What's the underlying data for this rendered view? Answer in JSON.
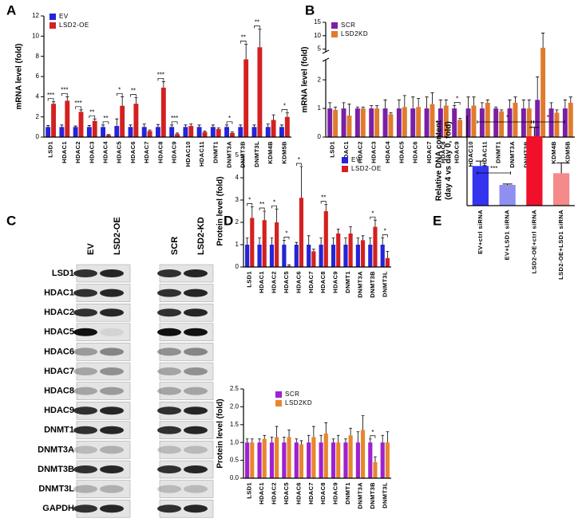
{
  "panel_labels": [
    "A",
    "B",
    "C",
    "D",
    "E"
  ],
  "blot": {
    "lanes": [
      "EV",
      "LSD2-OE",
      "SCR",
      "LSD2-KD"
    ],
    "proteins": [
      "LSD1",
      "HDAC1",
      "HDAC2",
      "HDAC5",
      "HDAC6",
      "HDAC7",
      "HDAC8",
      "HDAC9",
      "DNMT1",
      "DNMT3A",
      "DNMT3B",
      "DNMT3L",
      "GAPDH"
    ]
  },
  "chart_data": [
    {
      "type": "bar",
      "ylabel": [
        "mRNA level (fold)"
      ],
      "categories": [
        "LSD1",
        "HDAC1",
        "HDAC2",
        "HDAC3",
        "HDAC4",
        "HDAC5",
        "HDAC6",
        "HDAC7",
        "HDAC8",
        "HDAC9",
        "HDAC10",
        "HDAC11",
        "DNMT1",
        "DNMT3A",
        "DNMT3B",
        "DNMT3L",
        "KDM4B",
        "KDM5B"
      ],
      "series": [
        {
          "name": "EV",
          "color": "#2424d8",
          "values": [
            1,
            1,
            1,
            1,
            1,
            1.1,
            1,
            1,
            1,
            1,
            1,
            1,
            1,
            1,
            1,
            1,
            1,
            1
          ],
          "errors": [
            0.15,
            0.2,
            0.1,
            0.15,
            0.2,
            0.7,
            0.2,
            0.3,
            0.25,
            0.2,
            0.2,
            0.2,
            0.2,
            0.2,
            0.2,
            0.2,
            0.3,
            0.2
          ]
        },
        {
          "name": "LSD2-OE",
          "color": "#d42020",
          "values": [
            3.3,
            3.6,
            2.5,
            1.6,
            0.2,
            3.1,
            3.3,
            0.6,
            4.9,
            0.3,
            1.1,
            0.5,
            0.8,
            0.4,
            7.7,
            8.9,
            1.7,
            2.0
          ],
          "errors": [
            0.2,
            0.4,
            0.2,
            0.2,
            0.05,
            0.9,
            0.6,
            0.1,
            0.6,
            0.1,
            0.2,
            0.1,
            0.1,
            0.1,
            1.5,
            1.8,
            0.5,
            0.4
          ]
        }
      ],
      "significance": [
        "***",
        "***",
        "***",
        "**",
        "**",
        "*",
        "**",
        null,
        "***",
        "***",
        null,
        null,
        null,
        "*",
        "**",
        "**",
        null,
        "*"
      ],
      "ylim": [
        0,
        12
      ],
      "yticks": [
        0,
        2,
        4,
        6,
        8,
        10,
        12
      ]
    },
    {
      "type": "bar",
      "ylabel": [
        "mRNA level (fold)"
      ],
      "categories": [
        "LSD1",
        "HDAC1",
        "HDAC2",
        "HDAC3",
        "HDAC4",
        "HDAC5",
        "HDAC6",
        "HDAC7",
        "HDAC8",
        "HDAC9",
        "HDAC10",
        "HDAC11",
        "DNMT1",
        "DNMT3A",
        "DNMT3B",
        "DNMT3L",
        "KDM4B",
        "KDM5B"
      ],
      "series": [
        {
          "name": "SCR",
          "color": "#7a1fa6",
          "values": [
            1,
            1,
            1,
            1,
            1,
            1,
            1,
            1,
            1,
            1,
            1,
            1,
            1,
            1,
            1,
            1.3,
            1,
            1
          ],
          "errors": [
            0.2,
            0.2,
            0.05,
            0.1,
            0.3,
            0.3,
            0.4,
            0.4,
            0.3,
            0.1,
            0.4,
            0.2,
            0.05,
            0.3,
            0.3,
            0.8,
            0.2,
            0.3
          ]
        },
        {
          "name": "LSD2KD",
          "color": "#e07b2e",
          "values": [
            0.95,
            0.75,
            1,
            1,
            0.8,
            1.05,
            1.05,
            1.15,
            1.1,
            0.6,
            1.1,
            1.2,
            0.9,
            1.2,
            1,
            5.5,
            0.85,
            1.2
          ],
          "errors": [
            0.1,
            0.4,
            0.05,
            0.1,
            0.05,
            0.4,
            0.3,
            0.4,
            0.2,
            0.05,
            0.3,
            0.1,
            0.05,
            0.2,
            0.3,
            5.5,
            0.1,
            0.2
          ]
        }
      ],
      "significance": [
        null,
        null,
        null,
        null,
        null,
        null,
        null,
        null,
        null,
        "*",
        null,
        null,
        null,
        null,
        null,
        null,
        null,
        null
      ],
      "ylim": [
        0,
        15
      ],
      "ybreak": [
        2.7,
        4
      ],
      "yticks": [
        0,
        1,
        2,
        5,
        10,
        15
      ]
    },
    {
      "type": "bar",
      "ylabel": [
        "Protein level (fold)"
      ],
      "categories": [
        "LSD1",
        "HDAC1",
        "HDAC2",
        "HDAC5",
        "HDAC6",
        "HDAC7",
        "HDAC8",
        "HDAC9",
        "DNMT1",
        "DNMT3A",
        "DNMT3B",
        "DNMT3L"
      ],
      "series": [
        {
          "name": "EV",
          "color": "#2424d8",
          "values": [
            1,
            1,
            1,
            1,
            1,
            1,
            1,
            1,
            1,
            1,
            1,
            1
          ],
          "errors": [
            0.3,
            0.3,
            0.3,
            0.2,
            0.1,
            0.4,
            0.3,
            0.3,
            0.3,
            0.3,
            0.3,
            0.3
          ]
        },
        {
          "name": "LSD2-OE",
          "color": "#d42020",
          "values": [
            2.2,
            2.1,
            2.0,
            0.05,
            3.1,
            0.7,
            2.5,
            1.5,
            1.5,
            1.2,
            1.8,
            0.4
          ],
          "errors": [
            0.5,
            0.4,
            0.6,
            0.05,
            1.4,
            0.1,
            0.3,
            0.2,
            0.3,
            0.2,
            0.3,
            0.3
          ]
        }
      ],
      "significance": [
        "*",
        "**",
        "*",
        "*",
        "*",
        null,
        "**",
        null,
        null,
        null,
        "*",
        "*"
      ],
      "ylim": [
        0,
        5
      ],
      "yticks": [
        0,
        1,
        2,
        3,
        4,
        5
      ]
    },
    {
      "type": "bar",
      "ylabel": [
        "Protein level (fold)"
      ],
      "categories": [
        "LSD1",
        "HDAC1",
        "HDAC2",
        "HDAC5",
        "HDAC6",
        "HDAC7",
        "HDAC8",
        "HDAC9",
        "DNMT1",
        "DNMT3A",
        "DNMT3B",
        "DNMT3L"
      ],
      "series": [
        {
          "name": "SCR",
          "color": "#a020d0",
          "values": [
            1,
            1,
            1,
            1,
            1,
            1,
            1,
            1,
            1,
            1,
            1,
            1
          ],
          "errors": [
            0.1,
            0.1,
            0.15,
            0.15,
            0.1,
            0.2,
            0.2,
            0.1,
            0.1,
            0.3,
            0.1,
            0.2
          ]
        },
        {
          "name": "LSD2KD",
          "color": "#e8862e",
          "values": [
            1,
            1.1,
            1.15,
            1.15,
            0.95,
            1.15,
            1.25,
            1,
            1.2,
            1.35,
            0.45,
            1
          ],
          "errors": [
            0.1,
            0.1,
            0.3,
            0.2,
            0.1,
            0.3,
            0.3,
            0.2,
            0.2,
            0.4,
            0.15,
            0.3
          ]
        }
      ],
      "significance": [
        null,
        null,
        null,
        null,
        null,
        null,
        null,
        null,
        null,
        null,
        "*",
        null
      ],
      "ylim": [
        0,
        2.5
      ],
      "yticks": [
        {
          "value": 0,
          "label": "0.0"
        },
        {
          "value": 0.5,
          "label": "0.5"
        },
        {
          "value": 1,
          "label": "1.0"
        },
        {
          "value": 1.5,
          "label": "1.5"
        },
        {
          "value": 2,
          "label": "2.0"
        },
        {
          "value": 2.5,
          "label": "2.5"
        }
      ]
    },
    {
      "type": "bar",
      "ylabel": [
        "Relative DNA content",
        "(day 4 vs day 0, fold)"
      ],
      "categories": [
        "EV+ctrl siRNA",
        "EV+LSD1 siRNA",
        "LSD2-OE+ctrl siRNA",
        "LSD2-OE+LSD1 siRNA"
      ],
      "values": [
        8.8,
        4.6,
        15.4,
        7.2
      ],
      "errors": [
        1.1,
        0.2,
        2.0,
        2.3
      ],
      "colors": [
        "#3434f0",
        "#8f8ff0",
        "#f0102a",
        "#f48a8a"
      ],
      "significance": [
        "***",
        "*",
        "*"
      ],
      "ylim": [
        0,
        20
      ]
    }
  ]
}
